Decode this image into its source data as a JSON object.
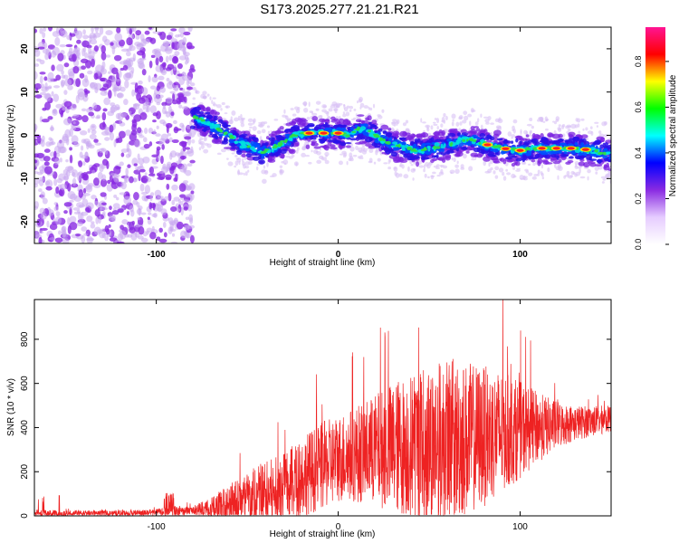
{
  "title": "S173.2025.277.21.21.R21",
  "colors": {
    "axis": "#000000",
    "snr_line": "#ee2222",
    "noise_dot": "#8a2be2",
    "noise_dot_light": "#c8a8f0"
  },
  "chart_data": [
    {
      "id": "spectrogram",
      "type": "heatmap",
      "xlabel": "Height of straight line (km)",
      "ylabel": "Frequency (Hz)",
      "xlim": [
        -167,
        150
      ],
      "ylim": [
        -25,
        25
      ],
      "xticks": [
        -100,
        0,
        100
      ],
      "yticks": [
        -20,
        -10,
        0,
        10,
        20
      ],
      "noise_region_x": [
        -167,
        -80
      ],
      "ridge": {
        "x": [
          -78,
          -72,
          -66,
          -60,
          -54,
          -48,
          -42,
          -36,
          -30,
          -24,
          -18,
          -12,
          -6,
          0,
          6,
          10,
          14,
          20,
          26,
          32,
          38,
          44,
          50,
          56,
          62,
          68,
          74,
          80,
          90,
          100,
          110,
          120,
          130,
          140,
          150
        ],
        "freq": [
          4,
          3,
          1.5,
          0,
          -2,
          -2.5,
          -4,
          -3,
          -1.5,
          0,
          0.5,
          0.5,
          0.5,
          0.5,
          0,
          1.5,
          1.5,
          0,
          -1.5,
          -2.5,
          -3,
          -3.5,
          -3,
          -2.5,
          -2,
          -1,
          -1,
          -2,
          -3,
          -3.5,
          -3,
          -3,
          -3,
          -3.5,
          -4.5
        ],
        "peak_x": [
          -16,
          -8,
          0,
          82,
          92,
          100,
          112,
          120,
          128,
          136
        ]
      },
      "colorbar": {
        "label": "Normalized spectral amplitude",
        "range": [
          0,
          0.95
        ],
        "ticks": [
          "0.0",
          "0.2",
          "0.4",
          "0.6",
          "0.8"
        ],
        "tick_values": [
          0,
          0.2,
          0.4,
          0.6,
          0.8
        ],
        "stops": [
          "#ffffff",
          "#e6ccff",
          "#8a2be2",
          "#0000ff",
          "#00ffff",
          "#00ff00",
          "#ffff00",
          "#ff0000",
          "#ff1493"
        ]
      }
    },
    {
      "id": "snr",
      "type": "line",
      "xlabel": "Height of straight line (km)",
      "ylabel": "SNR (10 * v/v)",
      "xlim": [
        -167,
        150
      ],
      "ylim": [
        0,
        980
      ],
      "xticks": [
        -100,
        0,
        100
      ],
      "yticks": [
        0,
        200,
        400,
        600,
        800
      ],
      "envelope": {
        "x": [
          -167,
          -150,
          -120,
          -100,
          -90,
          -80,
          -70,
          -60,
          -50,
          -40,
          -30,
          -20,
          -10,
          0,
          10,
          20,
          30,
          40,
          50,
          60,
          70,
          80,
          90,
          100,
          110,
          120,
          130,
          140,
          150
        ],
        "base": [
          10,
          10,
          12,
          15,
          20,
          25,
          30,
          40,
          70,
          100,
          120,
          180,
          220,
          260,
          280,
          300,
          310,
          320,
          330,
          340,
          350,
          360,
          380,
          390,
          400,
          410,
          420,
          430,
          440
        ],
        "amp": [
          18,
          15,
          12,
          15,
          30,
          15,
          60,
          100,
          130,
          150,
          160,
          180,
          200,
          200,
          220,
          250,
          300,
          330,
          360,
          380,
          350,
          320,
          280,
          220,
          160,
          110,
          80,
          70,
          60
        ]
      }
    }
  ]
}
